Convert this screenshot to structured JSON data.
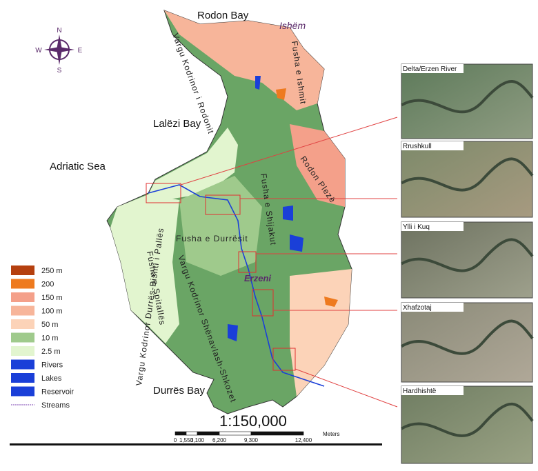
{
  "map": {
    "labels": {
      "rodon_bay": "Rodon Bay",
      "ishem": "Ishëm",
      "lalezi_bay": "Lalëzi Bay",
      "adriatic_sea": "Adriatic Sea",
      "durres_bay": "Durrës Bay",
      "erzeni": "Erzeni",
      "vargu_rodonit": "Vargu Kodrinor i Rodonit",
      "fusha_ishmit": "Fusha e Ishmit",
      "fusha_shijakut": "Fusha e Shijakut",
      "fusha_durresit": "Fusha e Durrësit",
      "fusha_spitalles": "Fusha e Spitallës",
      "vargu_durres": "Vargu Kodrinor Durrës-Bishti i Pallës",
      "vargu_shenavlash": "Vargu Kodrinor Shënavlash-Shkozet",
      "rodon_pleze": "Rodon Plezë"
    },
    "compass": {
      "n": "N",
      "s": "S",
      "e": "E",
      "w": "W"
    },
    "legend": [
      {
        "label": "250 m",
        "color": "#b5400f"
      },
      {
        "label": "200",
        "color": "#ee7a1f"
      },
      {
        "label": "150 m",
        "color": "#f4a08a"
      },
      {
        "label": "100 m",
        "color": "#f7b59a"
      },
      {
        "label": "50 m",
        "color": "#fcd3b8"
      },
      {
        "label": "10 m",
        "color": "#9fca8c"
      },
      {
        "label": "2.5 m",
        "color": "#e2f5cf"
      },
      {
        "label": "Rivers",
        "color": "#1a3fd8"
      },
      {
        "label": "Lakes",
        "color": "#1a3fd8"
      },
      {
        "label": "Reservoir",
        "color": "#1a3fd8"
      },
      {
        "label": "Streams",
        "color": "#7a3fb0"
      }
    ],
    "scale": {
      "ratio": "1:150,000",
      "unit": "Meters",
      "ticks": [
        "0",
        "1,550",
        "3,100",
        "6,200",
        "9,300",
        "12,400"
      ]
    },
    "photos": [
      "Delta/Erzen River",
      "Rrushkull",
      "Ylli i Kuq",
      "Xhafzotaj",
      "Hardhishtë"
    ]
  }
}
